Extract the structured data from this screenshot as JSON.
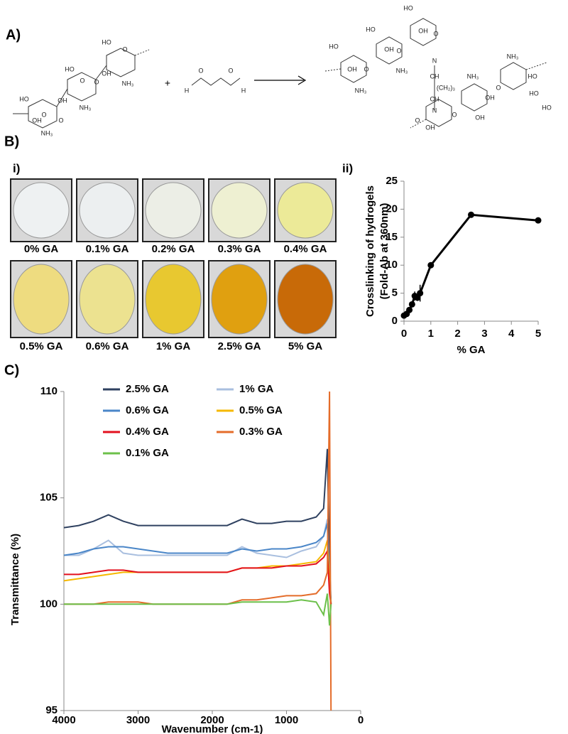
{
  "panels": {
    "a": "A)",
    "b": "B)",
    "bi": "i)",
    "bii": "ii)",
    "c": "C)"
  },
  "scheme": {
    "plus": "+",
    "labels": [
      "HO",
      "O",
      "HO",
      "OH",
      "O",
      "O",
      "NH₃",
      "HO",
      "OH",
      "O",
      "NH₃",
      "O",
      "OH",
      "NH₃",
      "O",
      "O",
      "H",
      "H",
      "HO",
      "OH",
      "O",
      "HO",
      "OH",
      "O",
      "HO",
      "OH",
      "O",
      "NH₃",
      "NH₃",
      "N",
      "CH",
      "(CH₂)₃",
      "CH",
      "N",
      "NH₃",
      "NH₃",
      "HO",
      "OH",
      "HO",
      "O",
      "O",
      "OH",
      "OH",
      "HO",
      "O"
    ]
  },
  "photos": [
    "0% GA",
    "0.1% GA",
    "0.2% GA",
    "0.3% GA",
    "0.4% GA",
    "0.5% GA",
    "0.6% GA",
    "1% GA",
    "2.5% GA",
    "5% GA"
  ],
  "chart_data": [
    {
      "type": "line",
      "xlabel": "% GA",
      "ylabel": [
        "Crosslinking of hydrogels",
        "(Fold-Ab at 360nm)"
      ],
      "x": [
        0,
        0.1,
        0.2,
        0.3,
        0.4,
        0.5,
        0.6,
        1,
        2.5,
        5
      ],
      "values": [
        1,
        1.3,
        2,
        3,
        4.5,
        4.2,
        5,
        10,
        19,
        18
      ],
      "errors": [
        0.2,
        0.2,
        0.3,
        0.5,
        0.8,
        0.6,
        1.5,
        0.4,
        0.3,
        0.3
      ],
      "color": "#000000",
      "xlim": [
        0,
        5
      ],
      "xticks": [
        0,
        1,
        2,
        3,
        4,
        5
      ],
      "ylim": [
        0,
        25
      ],
      "yticks": [
        0,
        5,
        10,
        15,
        20,
        25
      ]
    },
    {
      "type": "line",
      "xlabel": "Wavenumber (cm-1)",
      "ylabel": "Transmittance (%)",
      "x": [
        4000,
        3800,
        3600,
        3400,
        3200,
        3000,
        2800,
        2600,
        2400,
        2200,
        2000,
        1800,
        1600,
        1400,
        1200,
        1000,
        800,
        600,
        500,
        450,
        420,
        400
      ],
      "xlim": [
        4000,
        0
      ],
      "xticks": [
        4000,
        3000,
        2000,
        1000,
        0
      ],
      "ylim": [
        95,
        110
      ],
      "yticks": [
        95,
        100,
        105,
        110
      ],
      "series": [
        {
          "name": "2.5% GA",
          "color": "#2f4160",
          "values": [
            103.6,
            103.7,
            103.9,
            104.2,
            103.9,
            103.7,
            103.7,
            103.7,
            103.7,
            103.7,
            103.7,
            103.7,
            104.0,
            103.8,
            103.8,
            103.9,
            103.9,
            104.1,
            104.5,
            107.3,
            102,
            100
          ]
        },
        {
          "name": "1% GA",
          "color": "#a9bfdf",
          "values": [
            102.3,
            102.3,
            102.6,
            103.0,
            102.4,
            102.3,
            102.3,
            102.3,
            102.3,
            102.3,
            102.3,
            102.3,
            102.7,
            102.4,
            102.3,
            102.2,
            102.5,
            102.7,
            103.2,
            104,
            101,
            100
          ]
        },
        {
          "name": "0.6% GA",
          "color": "#4a86c8",
          "values": [
            102.3,
            102.4,
            102.6,
            102.7,
            102.7,
            102.6,
            102.5,
            102.4,
            102.4,
            102.4,
            102.4,
            102.4,
            102.6,
            102.5,
            102.6,
            102.6,
            102.7,
            102.9,
            103.2,
            103.8,
            101,
            100
          ]
        },
        {
          "name": "0.5% GA",
          "color": "#f5b800",
          "values": [
            101.1,
            101.2,
            101.3,
            101.4,
            101.5,
            101.5,
            101.5,
            101.5,
            101.5,
            101.5,
            101.5,
            101.5,
            101.7,
            101.7,
            101.8,
            101.8,
            101.9,
            102.0,
            102.4,
            103,
            101,
            100
          ]
        },
        {
          "name": "0.4% GA",
          "color": "#e3101e",
          "values": [
            101.4,
            101.4,
            101.5,
            101.6,
            101.6,
            101.5,
            101.5,
            101.5,
            101.5,
            101.5,
            101.5,
            101.5,
            101.7,
            101.7,
            101.7,
            101.8,
            101.8,
            101.9,
            102.2,
            102.5,
            100.5,
            100
          ]
        },
        {
          "name": "0.3% GA",
          "color": "#e46c2a",
          "values": [
            100.0,
            100.0,
            100.0,
            100.1,
            100.1,
            100.1,
            100.0,
            100.0,
            100.0,
            100.0,
            100.0,
            100.0,
            100.2,
            100.2,
            100.3,
            100.4,
            100.4,
            100.5,
            100.9,
            101.5,
            110,
            95
          ]
        },
        {
          "name": "0.1% GA",
          "color": "#6cc04a",
          "values": [
            100.0,
            100.0,
            100.0,
            100.0,
            100.0,
            100.0,
            100.0,
            100.0,
            100.0,
            100.0,
            100.0,
            100.0,
            100.1,
            100.1,
            100.1,
            100.1,
            100.2,
            100.1,
            99.5,
            100.5,
            99,
            100
          ]
        }
      ]
    }
  ]
}
